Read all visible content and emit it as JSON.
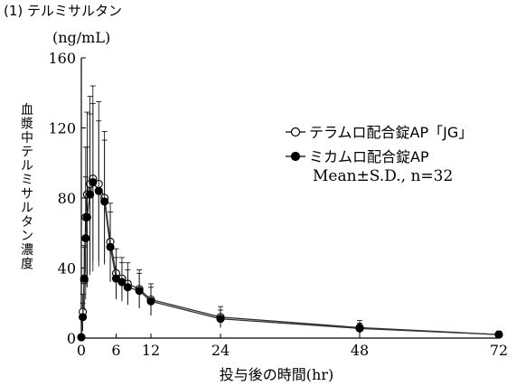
{
  "page_title": "(1) テルミサルタン",
  "chart_data": {
    "type": "line",
    "ylabel": "血漿中テルミサルタン濃度",
    "yunit": "(ng/mL)",
    "xlabel": "投与後の時間(hr)",
    "xlim": [
      0,
      72
    ],
    "ylim": [
      0,
      160
    ],
    "x_ticks": [
      0,
      6,
      12,
      24,
      48,
      72
    ],
    "y_ticks": [
      0,
      40,
      80,
      120,
      160
    ],
    "annotation": "Mean±S.D., n=32",
    "x": [
      0,
      0.25,
      0.5,
      0.75,
      1,
      1.5,
      2,
      3,
      4,
      5,
      6,
      7,
      8,
      10,
      12,
      24,
      48,
      72
    ],
    "series": [
      {
        "name": "テラムロ配合錠AP「JG」",
        "marker": "open-circle",
        "values": [
          0.5,
          15,
          33,
          69,
          82,
          88,
          91,
          88,
          80,
          55,
          37,
          34,
          31,
          28,
          22,
          12,
          6,
          2
        ],
        "sd": [
          0.5,
          10,
          20,
          40,
          47,
          50,
          53,
          47,
          38,
          22,
          14,
          12,
          12,
          11,
          9,
          6,
          4,
          2
        ]
      },
      {
        "name": "ミカムロ配合錠AP",
        "marker": "filled-circle",
        "values": [
          0.5,
          12,
          34,
          57,
          69,
          82,
          89,
          84,
          78,
          52,
          34,
          32,
          29,
          27,
          21,
          11,
          5.5,
          2
        ],
        "sd": [
          0.5,
          8,
          18,
          35,
          40,
          46,
          45,
          40,
          35,
          20,
          12,
          11,
          10,
          10,
          8,
          5,
          3,
          1.5
        ]
      }
    ],
    "colors": {
      "axis": "#000000",
      "line": "#333333"
    }
  }
}
